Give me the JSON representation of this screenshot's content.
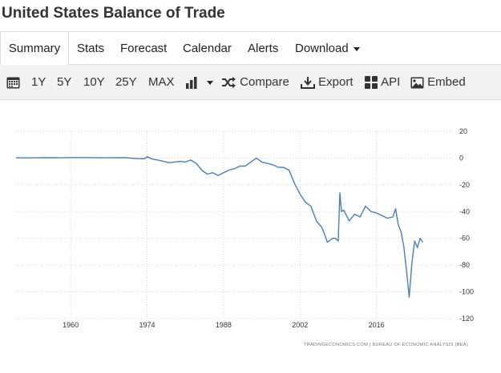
{
  "page": {
    "title": "United States Balance of Trade"
  },
  "tabs": [
    {
      "label": "Summary",
      "active": true
    },
    {
      "label": "Stats"
    },
    {
      "label": "Forecast"
    },
    {
      "label": "Calendar"
    },
    {
      "label": "Alerts"
    },
    {
      "label": "Download",
      "dropdown": true
    }
  ],
  "toolbar": {
    "calendar_icon": "calendar-icon",
    "ranges": [
      "1Y",
      "5Y",
      "10Y",
      "25Y",
      "MAX"
    ],
    "chart_type_icon": "bar-chart-icon",
    "compare_label": "Compare",
    "export_label": "Export",
    "api_label": "API",
    "embed_label": "Embed"
  },
  "chart_data": {
    "type": "line",
    "xlabel": "",
    "ylabel": "",
    "xlim": [
      1950,
      2030
    ],
    "ylim": [
      -120,
      20
    ],
    "x_ticks": [
      1960,
      1974,
      1988,
      2002,
      2016
    ],
    "y_ticks": [
      20,
      0,
      -20,
      -40,
      -60,
      -80,
      -100,
      -120
    ],
    "y_axis_side": "right",
    "grid": {
      "vertical": true,
      "horizontal": true,
      "style": "dotted"
    },
    "line_color": "#4a7fb5",
    "credit": "TRADINGECONOMICS.COM | BUREAU OF ECONOMIC ANALYSIS (BEA)",
    "series": [
      {
        "x": [
          1950,
          1952,
          1955,
          1958,
          1961,
          1964,
          1967,
          1970,
          1972,
          1973.5,
          1974,
          1975,
          1976,
          1977,
          1978,
          1979,
          1980,
          1981,
          1982,
          1983,
          1984,
          1985,
          1986,
          1987,
          1988,
          1989,
          1990,
          1991,
          1992,
          1993,
          1994,
          1995,
          1996,
          1997,
          1998,
          1999,
          2000,
          2001,
          2002,
          2003,
          2004,
          2005,
          2006,
          2006.5,
          2007,
          2008,
          2008.5,
          2009,
          2009.3,
          2009.6,
          2010,
          2011,
          2012,
          2013,
          2014,
          2015,
          2016,
          2017,
          2018,
          2019,
          2019.5,
          2020,
          2020.5,
          2021,
          2021.5,
          2022,
          2022.5,
          2023,
          2023.5,
          2024,
          2024.5
        ],
        "y": [
          0.2,
          0.1,
          0.3,
          0.2,
          0.4,
          0.3,
          0.2,
          0.3,
          -0.4,
          -0.6,
          1,
          -0.8,
          -1.5,
          -2.5,
          -3.5,
          -3,
          -2.5,
          -3,
          -1.5,
          -4,
          -9,
          -12,
          -11,
          -13,
          -11,
          -9,
          -8,
          -6,
          -6,
          -3,
          0,
          -3,
          -4,
          -5,
          -7,
          -7,
          -9,
          -19,
          -27,
          -33,
          -36,
          -47,
          -52,
          -57,
          -63,
          -60,
          -60,
          -62,
          -26,
          -40,
          -39,
          -47,
          -42,
          -44,
          -36,
          -40,
          -41,
          -43,
          -45,
          -44,
          -38,
          -50,
          -55,
          -66,
          -84,
          -104,
          -78,
          -62,
          -67,
          -60,
          -63
        ]
      }
    ]
  }
}
